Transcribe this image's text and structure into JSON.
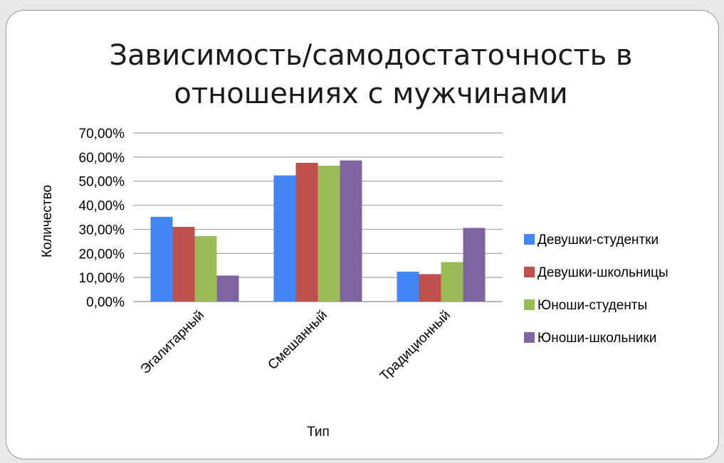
{
  "chart_data": {
    "type": "bar",
    "title": "Зависимость/самодостаточность в отношениях с мужчинами",
    "title_lines": [
      "Зависимость/самодостаточность в",
      "отношениях с мужчинами"
    ],
    "xlabel": "Тип",
    "ylabel": "Количество",
    "categories": [
      "Эгалитарный",
      "Смешанный",
      "Традиционный"
    ],
    "yticks": [
      "0,00%",
      "10,00%",
      "20,00%",
      "30,00%",
      "40,00%",
      "50,00%",
      "60,00%",
      "70,00%"
    ],
    "ylim": [
      0,
      70
    ],
    "grid": true,
    "legend_position": "right",
    "series": [
      {
        "name": "Девушки-студентки",
        "color": "#4285f4",
        "values": [
          35.2,
          52.4,
          12.4
        ]
      },
      {
        "name": "Девушки-школьницы",
        "color": "#c0504d",
        "values": [
          31.0,
          57.6,
          11.4
        ]
      },
      {
        "name": "Юноши-студенты",
        "color": "#9bbb59",
        "values": [
          27.2,
          56.4,
          16.4
        ]
      },
      {
        "name": "Юноши-школьники",
        "color": "#8064a2",
        "values": [
          10.8,
          58.6,
          30.6
        ]
      }
    ]
  }
}
